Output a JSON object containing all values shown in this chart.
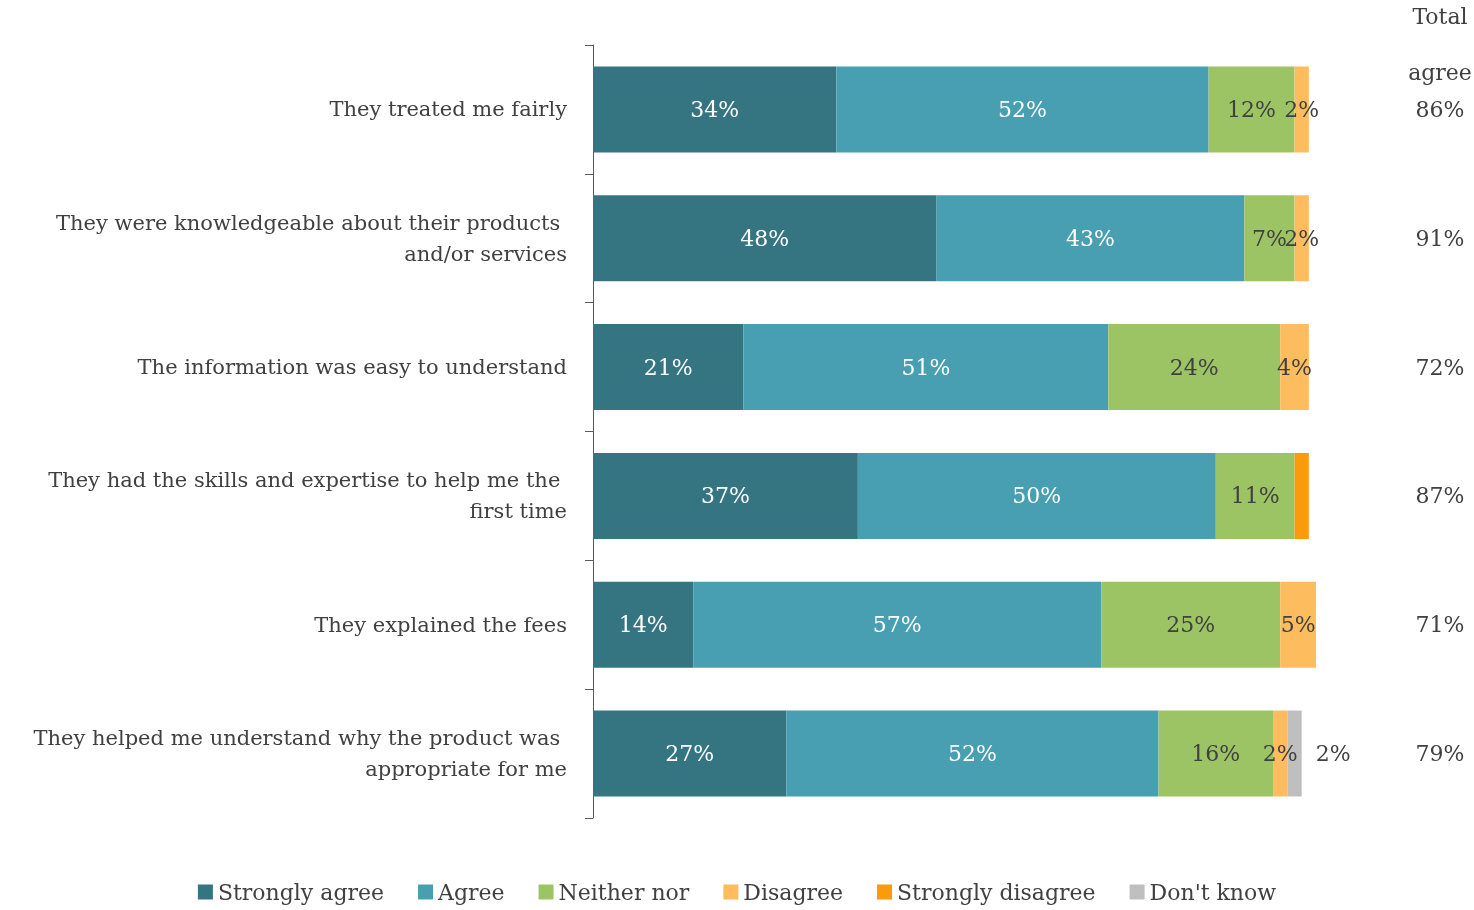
{
  "chart_data": {
    "type": "bar",
    "orientation": "horizontal",
    "stacked": true,
    "categories": [
      "They treated me fairly",
      "They were knowledgeable about their products and/or services",
      "The information was easy to understand",
      "They had the skills and expertise to help me the first time",
      "They explained the fees",
      "They helped me understand why the product was appropriate for me"
    ],
    "series": [
      {
        "name": "Strongly agree",
        "color": "#357582",
        "values": [
          34,
          48,
          21,
          37,
          14,
          27
        ],
        "value_labels": [
          "34%",
          "48%",
          "21%",
          "37%",
          "14%",
          "27%"
        ]
      },
      {
        "name": "Agree",
        "color": "#479fb1",
        "values": [
          52,
          43,
          51,
          50,
          57,
          52
        ],
        "value_labels": [
          "52%",
          "43%",
          "51%",
          "50%",
          "57%",
          "52%"
        ]
      },
      {
        "name": "Neither nor",
        "color": "#9dc464",
        "values": [
          12,
          7,
          24,
          11,
          25,
          16
        ],
        "value_labels": [
          "12%",
          "7%",
          "24%",
          "11%",
          "25%",
          "16%"
        ]
      },
      {
        "name": "Disagree",
        "color": "#fdbd5e",
        "values": [
          2,
          2,
          4,
          null,
          5,
          2
        ],
        "value_labels": [
          "2%",
          "2%",
          "4%",
          null,
          "5%",
          "2%"
        ]
      },
      {
        "name": "Strongly disagree",
        "color": "#f99b0b",
        "values": [
          null,
          null,
          null,
          2,
          null,
          null
        ],
        "value_labels": [
          null,
          null,
          null,
          null,
          null,
          null
        ]
      },
      {
        "name": "Don't know",
        "color": "#bfbfbf",
        "values": [
          null,
          null,
          null,
          null,
          null,
          2
        ],
        "value_labels": [
          null,
          null,
          null,
          null,
          null,
          "2%"
        ]
      }
    ],
    "tick_labels": "y",
    "legend": "bottom",
    "annotations": [
      "Total agree",
      "86%",
      "91%",
      "72%",
      "87%",
      "71%",
      "79%"
    ]
  }
}
